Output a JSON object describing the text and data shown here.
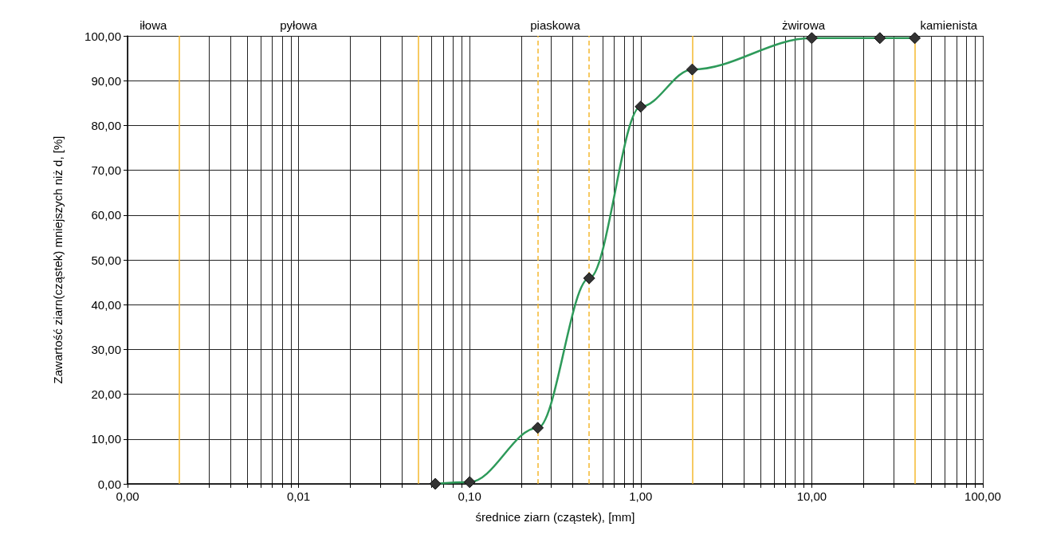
{
  "chart_data": {
    "type": "line",
    "xlabel": "średnice ziarn (cząstek), [mm]",
    "ylabel": "Zawartość ziarn(cząstek) mniejszych niż d, [%]",
    "log": "x",
    "x": [
      0.063,
      0.1,
      0.25,
      0.5,
      1.0,
      2.0,
      10,
      25,
      40
    ],
    "series": [
      {
        "color": "#2e9a5a",
        "values": [
          0,
          0.4,
          12.5,
          45.9,
          84.2,
          92.5,
          99.5,
          99.5,
          99.5
        ]
      }
    ],
    "marker": "diamond",
    "xlim": [
      0.001,
      100
    ],
    "xticks": [
      {
        "value": 0.001,
        "label": "0,00"
      },
      {
        "value": 0.003,
        "label": null
      },
      {
        "value": 0.004,
        "label": null
      },
      {
        "value": 0.005,
        "label": null
      },
      {
        "value": 0.006,
        "label": null
      },
      {
        "value": 0.007,
        "label": null
      },
      {
        "value": 0.008,
        "label": null
      },
      {
        "value": 0.009,
        "label": null
      },
      {
        "value": 0.01,
        "label": "0,01"
      },
      {
        "value": 0.02,
        "label": null
      },
      {
        "value": 0.03,
        "label": null
      },
      {
        "value": 0.04,
        "label": null
      },
      {
        "value": 0.06,
        "label": null
      },
      {
        "value": 0.07,
        "label": null
      },
      {
        "value": 0.08,
        "label": null
      },
      {
        "value": 0.09,
        "label": null
      },
      {
        "value": 0.1,
        "label": "0,10"
      },
      {
        "value": 0.2,
        "label": null
      },
      {
        "value": 0.3,
        "label": null
      },
      {
        "value": 0.4,
        "label": null
      },
      {
        "value": 0.6,
        "label": null
      },
      {
        "value": 0.7,
        "label": null
      },
      {
        "value": 0.8,
        "label": null
      },
      {
        "value": 0.9,
        "label": null
      },
      {
        "value": 1,
        "label": "1,00"
      },
      {
        "value": 3,
        "label": null
      },
      {
        "value": 4,
        "label": null
      },
      {
        "value": 5,
        "label": null
      },
      {
        "value": 6,
        "label": null
      },
      {
        "value": 7,
        "label": null
      },
      {
        "value": 8,
        "label": null
      },
      {
        "value": 9,
        "label": null
      },
      {
        "value": 10,
        "label": "10,00"
      },
      {
        "value": 20,
        "label": null
      },
      {
        "value": 30,
        "label": null
      },
      {
        "value": 50,
        "label": null
      },
      {
        "value": 60,
        "label": null
      },
      {
        "value": 70,
        "label": null
      },
      {
        "value": 80,
        "label": null
      },
      {
        "value": 90,
        "label": null
      },
      {
        "value": 100,
        "label": "100,00"
      }
    ],
    "ylim": [
      0,
      100
    ],
    "yticks": [
      {
        "value": 0,
        "label": "0,00"
      },
      {
        "value": 10,
        "label": "10,00"
      },
      {
        "value": 20,
        "label": "20,00"
      },
      {
        "value": 30,
        "label": "30,00"
      },
      {
        "value": 40,
        "label": "40,00"
      },
      {
        "value": 50,
        "label": "50,00"
      },
      {
        "value": 60,
        "label": "60,00"
      },
      {
        "value": 70,
        "label": "70,00"
      },
      {
        "value": 80,
        "label": "80,00"
      },
      {
        "value": 90,
        "label": "90,00"
      },
      {
        "value": 100,
        "label": "100,00"
      }
    ],
    "grid": true,
    "ref_lines": [
      {
        "axis": "x",
        "value": 0.002,
        "color": "#f5b82e",
        "line_style": "solid"
      },
      {
        "axis": "x",
        "value": 0.05,
        "color": "#f5b82e",
        "line_style": "solid"
      },
      {
        "axis": "x",
        "value": 0.25,
        "color": "#f5b82e",
        "line_style": "dashed"
      },
      {
        "axis": "x",
        "value": 0.5,
        "color": "#f5b82e",
        "line_style": "dashed"
      },
      {
        "axis": "x",
        "value": 2,
        "color": "#f5b82e",
        "line_style": "solid"
      },
      {
        "axis": "x",
        "value": 40,
        "color": "#f5b82e",
        "line_style": "solid"
      }
    ],
    "annotations": [
      "iłowa",
      "pyłowa",
      "piaskowa",
      "żwirowa",
      "kamienista"
    ]
  }
}
